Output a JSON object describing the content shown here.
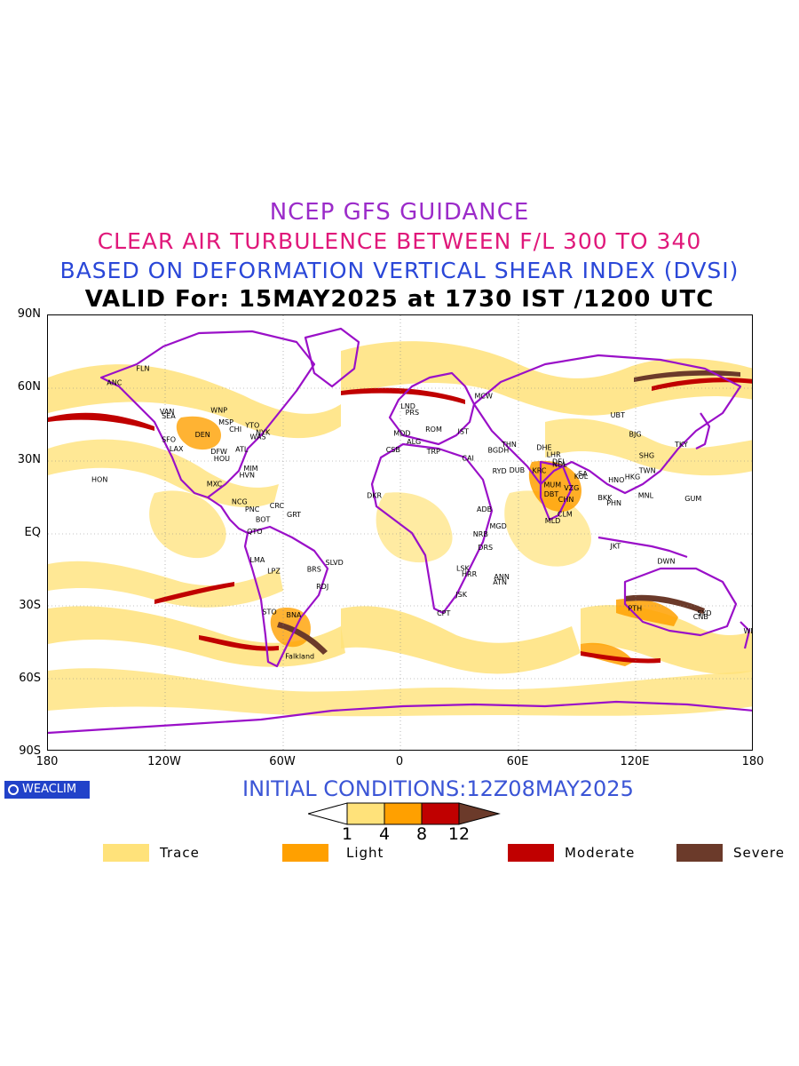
{
  "title": {
    "line1": "NCEP GFS GUIDANCE",
    "line2": "CLEAR AIR TURBULENCE BETWEEN F/L 300 TO 340",
    "line3": "BASED ON DEFORMATION VERTICAL SHEAR INDEX (DVSI)",
    "line4": "VALID For: 15MAY2025 at 1730 IST /1200 UTC"
  },
  "colors": {
    "line1": "#9b2bc9",
    "line2": "#e0187a",
    "line3": "#2a47d8",
    "trace": "#ffe27a",
    "light": "#ffa000",
    "moderate": "#c00000",
    "severe": "#6b3a2a",
    "coast": "#9a10c8"
  },
  "axes": {
    "lat_labels": [
      "90N",
      "60N",
      "30N",
      "EQ",
      "30S",
      "60S",
      "90S"
    ],
    "lon_labels": [
      "180",
      "120W",
      "60W",
      "0",
      "60E",
      "120E",
      "180"
    ]
  },
  "cities": [
    {
      "name": "ANC",
      "lon": -150,
      "lat": 61.2
    },
    {
      "name": "FLN",
      "lon": -135,
      "lat": 67
    },
    {
      "name": "VAN",
      "lon": -123,
      "lat": 49.3
    },
    {
      "name": "SEA",
      "lon": -122,
      "lat": 47.5
    },
    {
      "name": "SFO",
      "lon": -122,
      "lat": 37.7
    },
    {
      "name": "LAX",
      "lon": -118,
      "lat": 34
    },
    {
      "name": "WNP",
      "lon": -97,
      "lat": 49.9
    },
    {
      "name": "MSP",
      "lon": -93,
      "lat": 45
    },
    {
      "name": "DEN",
      "lon": -105,
      "lat": 39.7
    },
    {
      "name": "CHI",
      "lon": -87.6,
      "lat": 41.9
    },
    {
      "name": "YTO",
      "lon": -79.4,
      "lat": 43.7
    },
    {
      "name": "NYK",
      "lon": -74,
      "lat": 40.7
    },
    {
      "name": "WAS",
      "lon": -77,
      "lat": 38.9
    },
    {
      "name": "ATL",
      "lon": -84.4,
      "lat": 33.7
    },
    {
      "name": "DFW",
      "lon": -97,
      "lat": 32.8
    },
    {
      "name": "HOU",
      "lon": -95.4,
      "lat": 29.8
    },
    {
      "name": "MIM",
      "lon": -80.2,
      "lat": 25.8
    },
    {
      "name": "HVN",
      "lon": -82.4,
      "lat": 23.1
    },
    {
      "name": "HON",
      "lon": -157.8,
      "lat": 21.3
    },
    {
      "name": "MXC",
      "lon": -99.1,
      "lat": 19.4
    },
    {
      "name": "NCG",
      "lon": -86.3,
      "lat": 12.1
    },
    {
      "name": "CRC",
      "lon": -66.9,
      "lat": 10.5
    },
    {
      "name": "PNC",
      "lon": -79.5,
      "lat": 9
    },
    {
      "name": "BOT",
      "lon": -74.1,
      "lat": 4.7
    },
    {
      "name": "QTO",
      "lon": -78.5,
      "lat": -0.2
    },
    {
      "name": "GRT",
      "lon": -58.2,
      "lat": 6.8
    },
    {
      "name": "LMA",
      "lon": -77,
      "lat": -12
    },
    {
      "name": "LPZ",
      "lon": -68.1,
      "lat": -16.5
    },
    {
      "name": "BRS",
      "lon": -47.9,
      "lat": -15.8
    },
    {
      "name": "SLVD",
      "lon": -38.5,
      "lat": -13
    },
    {
      "name": "RDJ",
      "lon": -43.2,
      "lat": -22.9
    },
    {
      "name": "STO",
      "lon": -70.7,
      "lat": -33.4
    },
    {
      "name": "BNA",
      "lon": -58.4,
      "lat": -34.6
    },
    {
      "name": "Falkland",
      "lon": -59,
      "lat": -51.7
    },
    {
      "name": "LND",
      "lon": -0.1,
      "lat": 51.5
    },
    {
      "name": "PRS",
      "lon": 2.3,
      "lat": 48.9
    },
    {
      "name": "MDD",
      "lon": -3.7,
      "lat": 40.4
    },
    {
      "name": "ROM",
      "lon": 12.5,
      "lat": 41.9
    },
    {
      "name": "ALG",
      "lon": 3,
      "lat": 36.8
    },
    {
      "name": "CSB",
      "lon": -7.6,
      "lat": 33.6
    },
    {
      "name": "TRP",
      "lon": 13.2,
      "lat": 32.9
    },
    {
      "name": "IST",
      "lon": 29,
      "lat": 41
    },
    {
      "name": "CAI",
      "lon": 31.2,
      "lat": 30
    },
    {
      "name": "MCW",
      "lon": 37.6,
      "lat": 55.8
    },
    {
      "name": "BGDH",
      "lon": 44.4,
      "lat": 33.3
    },
    {
      "name": "THN",
      "lon": 51.4,
      "lat": 35.7
    },
    {
      "name": "RYD",
      "lon": 46.7,
      "lat": 24.7
    },
    {
      "name": "DUB",
      "lon": 55.3,
      "lat": 25.2
    },
    {
      "name": "KRC",
      "lon": 67,
      "lat": 24.9
    },
    {
      "name": "DHE",
      "lon": 69.2,
      "lat": 34.5
    },
    {
      "name": "DEL",
      "lon": 77.2,
      "lat": 28.6
    },
    {
      "name": "LHR",
      "lon": 74.3,
      "lat": 31.5
    },
    {
      "name": "NDL",
      "lon": 77.2,
      "lat": 27.5
    },
    {
      "name": "MUM",
      "lon": 72.9,
      "lat": 19.1
    },
    {
      "name": "KOL",
      "lon": 88.4,
      "lat": 22.6
    },
    {
      "name": "VZG",
      "lon": 83.2,
      "lat": 17.7
    },
    {
      "name": "DBT",
      "lon": 73,
      "lat": 15.3
    },
    {
      "name": "CLM",
      "lon": 79.9,
      "lat": 6.9
    },
    {
      "name": "MLD",
      "lon": 73.5,
      "lat": 4.2
    },
    {
      "name": "CHN",
      "lon": 80.3,
      "lat": 13
    },
    {
      "name": "SA",
      "lon": 90.4,
      "lat": 23.7
    },
    {
      "name": "HNO",
      "lon": 105.8,
      "lat": 21
    },
    {
      "name": "BKK",
      "lon": 100.5,
      "lat": 13.8
    },
    {
      "name": "PHN",
      "lon": 104.9,
      "lat": 11.6
    },
    {
      "name": "HKG",
      "lon": 114.2,
      "lat": 22.3
    },
    {
      "name": "TWN",
      "lon": 121.5,
      "lat": 25
    },
    {
      "name": "SHG",
      "lon": 121.5,
      "lat": 31.2
    },
    {
      "name": "BJG",
      "lon": 116.4,
      "lat": 39.9
    },
    {
      "name": "UBT",
      "lon": 106.9,
      "lat": 47.9
    },
    {
      "name": "TKY",
      "lon": 139.7,
      "lat": 35.7
    },
    {
      "name": "MNL",
      "lon": 121,
      "lat": 14.6
    },
    {
      "name": "GUM",
      "lon": 144.8,
      "lat": 13.4
    },
    {
      "name": "JKT",
      "lon": 106.8,
      "lat": -6.2
    },
    {
      "name": "DWN",
      "lon": 130.8,
      "lat": -12.5
    },
    {
      "name": "PTH",
      "lon": 115.9,
      "lat": -31.9
    },
    {
      "name": "SYD",
      "lon": 151.2,
      "lat": -33.9
    },
    {
      "name": "CNB",
      "lon": 149.1,
      "lat": -35.3
    },
    {
      "name": "WLT",
      "lon": 174.8,
      "lat": -41.3
    },
    {
      "name": "DKR",
      "lon": -17.4,
      "lat": 14.7
    },
    {
      "name": "ADB",
      "lon": 38.7,
      "lat": 9
    },
    {
      "name": "MGD",
      "lon": 45.3,
      "lat": 2
    },
    {
      "name": "NRB",
      "lon": 36.8,
      "lat": -1.3
    },
    {
      "name": "DRS",
      "lon": 39.3,
      "lat": -6.8
    },
    {
      "name": "ANN",
      "lon": 47.5,
      "lat": -18.9
    },
    {
      "name": "LSK",
      "lon": 28.3,
      "lat": -15.4
    },
    {
      "name": "HRR",
      "lon": 31,
      "lat": -17.8
    },
    {
      "name": "ATN",
      "lon": 47,
      "lat": -21
    },
    {
      "name": "JSK",
      "lon": 28,
      "lat": -26.2
    },
    {
      "name": "CPT",
      "lon": 18.4,
      "lat": -33.9
    }
  ],
  "logo": "WEACLIM",
  "initial_conditions": "INITIAL CONDITIONS:12Z08MAY2025",
  "colorbar": {
    "thresholds": [
      "1",
      "4",
      "8",
      "12"
    ]
  },
  "legend": [
    {
      "label": "Trace",
      "color": "#ffe27a"
    },
    {
      "label": "Light",
      "color": "#ffa000"
    },
    {
      "label": "Moderate",
      "color": "#c00000"
    },
    {
      "label": "Severe",
      "color": "#6b3a2a"
    }
  ]
}
